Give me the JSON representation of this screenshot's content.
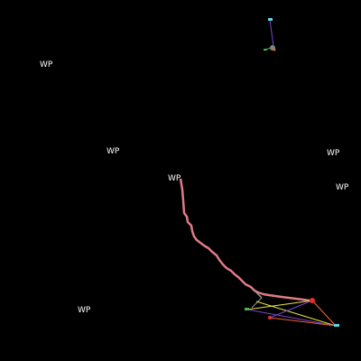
{
  "map": {
    "background": "#000000",
    "waypoint_labels": [
      "WP",
      "WP",
      "WP",
      "WP",
      "WP",
      "WP"
    ],
    "colors": {
      "track": "#e07a86",
      "route_yellow": "#e8e24a",
      "route_orange": "#e8632a",
      "route_purple": "#7b46c8",
      "marker_red": "#e0322a",
      "marker_cyan": "#5fd6e0",
      "marker_green": "#4caf50",
      "marker_gray": "#9a9a9a"
    }
  }
}
